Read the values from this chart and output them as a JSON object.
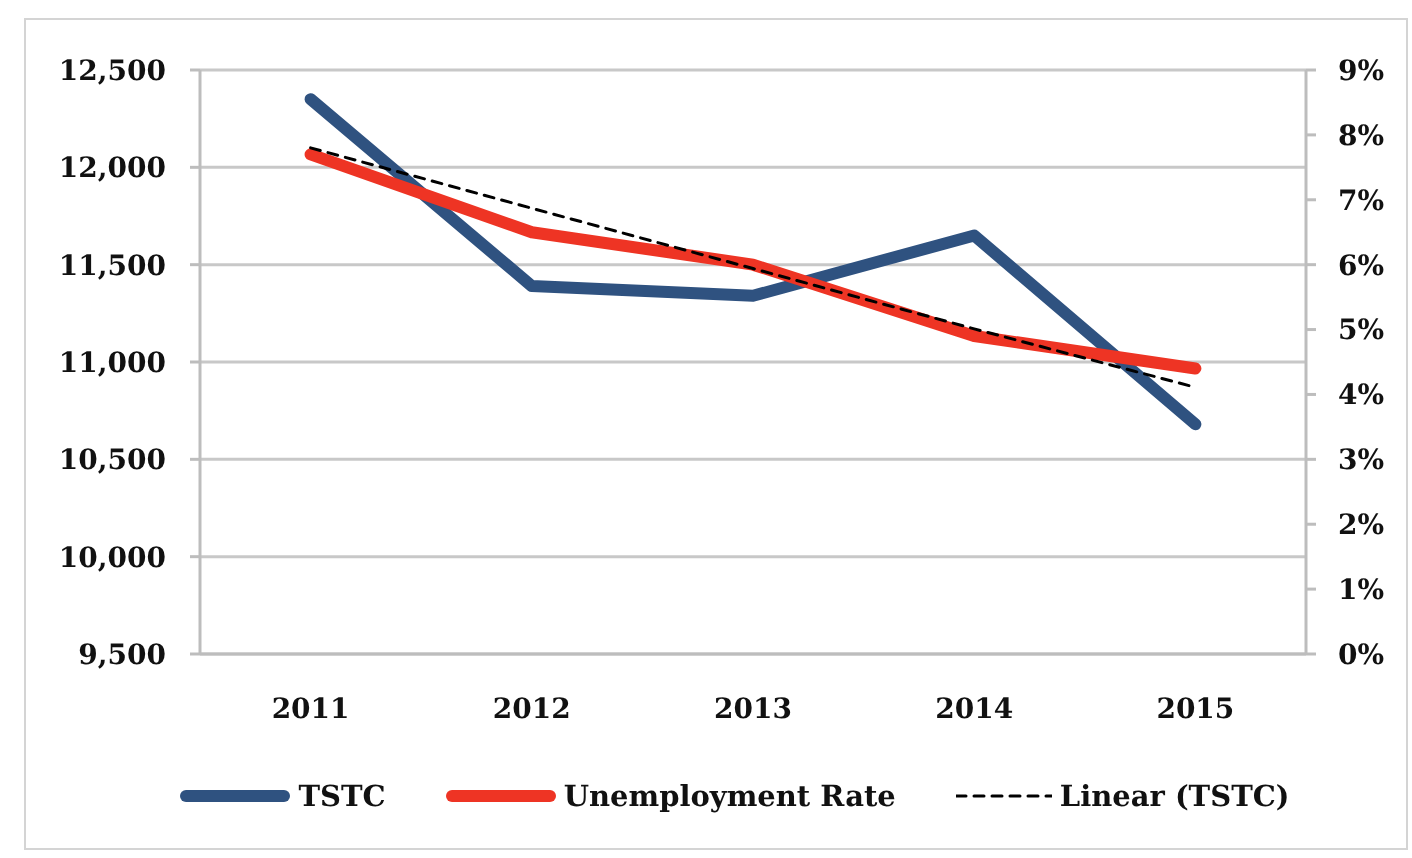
{
  "chart_data": {
    "type": "line",
    "categories": [
      "2011",
      "2012",
      "2013",
      "2014",
      "2015"
    ],
    "series": [
      {
        "name": "TSTC",
        "color": "#2f5280",
        "values": [
          12350,
          11390,
          11340,
          11650,
          10680
        ]
      },
      {
        "name": "Unemployment Rate",
        "color": "#ee3424",
        "axis": "y2",
        "values": [
          7.7,
          6.5,
          6.0,
          4.9,
          4.4
        ]
      },
      {
        "name": "Linear (TSTC)",
        "type": "line",
        "color": "#000000",
        "line_style": "dashed",
        "values": [
          12100,
          11790,
          11480,
          11170,
          10870
        ]
      }
    ],
    "ylim": [
      9500,
      12500
    ],
    "yticks": [
      {
        "value": 9500,
        "label": "9,500"
      },
      {
        "value": 10000,
        "label": "10,000"
      },
      {
        "value": 10500,
        "label": "10,500"
      },
      {
        "value": 11000,
        "label": "11,000"
      },
      {
        "value": 11500,
        "label": "11,500"
      },
      {
        "value": 12000,
        "label": "12,000"
      },
      {
        "value": 12500,
        "label": "12,500"
      }
    ],
    "y2lim": [
      0,
      9
    ],
    "y2ticks": [
      {
        "value": 0,
        "label": "0%"
      },
      {
        "value": 1,
        "label": "1%"
      },
      {
        "value": 2,
        "label": "2%"
      },
      {
        "value": 3,
        "label": "3%"
      },
      {
        "value": 4,
        "label": "4%"
      },
      {
        "value": 5,
        "label": "5%"
      },
      {
        "value": 6,
        "label": "6%"
      },
      {
        "value": 7,
        "label": "7%"
      },
      {
        "value": 8,
        "label": "8%"
      },
      {
        "value": 9,
        "label": "9%"
      }
    ],
    "grid": "y",
    "legend": "bottom",
    "marker": "none"
  }
}
